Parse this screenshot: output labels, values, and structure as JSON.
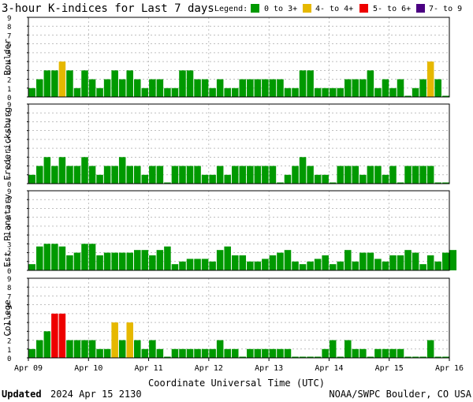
{
  "title": "3-hour K-indices for Last 7 days",
  "legend": {
    "label": "Legend:",
    "items": [
      {
        "label": "0 to 3+",
        "color": "#009900"
      },
      {
        "label": "4- to 4+",
        "color": "#e6b800"
      },
      {
        "label": "5- to 6+",
        "color": "#ee0000"
      },
      {
        "label": "7- to 9",
        "color": "#4b0082"
      }
    ]
  },
  "xlabel": "Coordinate Universal Time (UTC)",
  "footer": {
    "updated_label": "Updated",
    "updated_value": "2024 Apr 15 2130",
    "credit": "NOAA/SWPC Boulder, CO USA"
  },
  "chart_data": {
    "type": "bar",
    "x_ticks": [
      "Apr 09",
      "Apr 10",
      "Apr 11",
      "Apr 12",
      "Apr 13",
      "Apr 14",
      "Apr 15",
      "Apr 16"
    ],
    "ylim": [
      0,
      9
    ],
    "y_ticks": [
      0,
      1,
      2,
      3,
      4,
      5,
      6,
      7,
      8,
      9
    ],
    "color_scale": [
      {
        "min": 0,
        "max": 3.99,
        "color": "#009900"
      },
      {
        "min": 4,
        "max": 4.99,
        "color": "#e6b800"
      },
      {
        "min": 5,
        "max": 6.99,
        "color": "#ee0000"
      },
      {
        "min": 7,
        "max": 9,
        "color": "#4b0082"
      }
    ],
    "series": [
      {
        "name": "Boulder",
        "values": [
          1,
          2,
          3,
          3,
          4,
          3,
          1,
          3,
          2,
          1,
          2,
          3,
          2,
          3,
          2,
          1,
          2,
          2,
          1,
          1,
          3,
          3,
          2,
          2,
          1,
          2,
          1,
          1,
          2,
          2,
          2,
          2,
          2,
          2,
          1,
          1,
          3,
          3,
          1,
          1,
          1,
          1,
          2,
          2,
          2,
          3,
          1,
          2,
          1,
          2,
          0,
          1,
          2,
          4,
          2,
          0
        ]
      },
      {
        "name": "Fredericksburg",
        "values": [
          1,
          2,
          3,
          2,
          3,
          2,
          2,
          3,
          2,
          1,
          2,
          2,
          3,
          2,
          2,
          1,
          2,
          2,
          0,
          2,
          2,
          2,
          2,
          1,
          1,
          2,
          1,
          2,
          2,
          2,
          2,
          2,
          2,
          0,
          1,
          2,
          3,
          2,
          1,
          1,
          0,
          2,
          2,
          2,
          1,
          2,
          2,
          1,
          2,
          0,
          2,
          2,
          2,
          2,
          0,
          0
        ]
      },
      {
        "name": "Est. Planetary",
        "values": [
          0.7,
          2.7,
          3,
          3,
          2.7,
          1.7,
          2,
          3,
          3,
          1.7,
          2,
          2,
          2,
          2,
          2.3,
          2.3,
          1.7,
          2.3,
          2.7,
          0.7,
          1,
          1.3,
          1.3,
          1.3,
          1,
          2.3,
          2.7,
          1.7,
          1.7,
          1,
          1,
          1.3,
          1.7,
          2,
          2.3,
          1,
          0.7,
          1,
          1.3,
          1.7,
          0.7,
          1,
          2.3,
          1,
          2,
          2,
          1.3,
          1,
          1.7,
          1.7,
          2.3,
          2,
          0.7,
          1.7,
          1,
          2,
          2.3
        ]
      },
      {
        "name": "College",
        "values": [
          1,
          2,
          3,
          5,
          5,
          2,
          2,
          2,
          2,
          1,
          1,
          4,
          2,
          4,
          2,
          1,
          2,
          1,
          0,
          1,
          1,
          1,
          1,
          1,
          1,
          2,
          1,
          1,
          0,
          1,
          1,
          1,
          1,
          1,
          1,
          0,
          0,
          0,
          0,
          1,
          2,
          0,
          2,
          1,
          1,
          0,
          1,
          1,
          1,
          1,
          0,
          0,
          0,
          2,
          0,
          0
        ]
      }
    ]
  }
}
